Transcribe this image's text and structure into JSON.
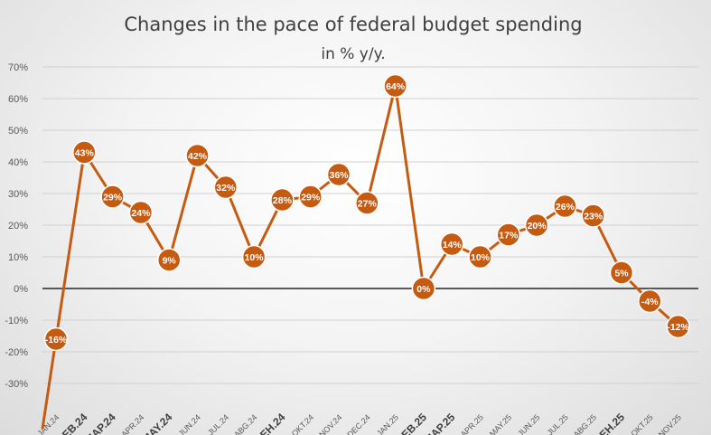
{
  "chart_data": {
    "type": "line",
    "title": "Changes in the pace of federal budget spending",
    "subtitle": "in % y/y.",
    "xlabel": "",
    "ylabel": "",
    "ylim": [
      -30,
      70
    ],
    "yticks": [
      70,
      60,
      50,
      40,
      30,
      20,
      10,
      0,
      -10,
      -20,
      -30
    ],
    "ytick_labels": [
      "70%",
      "60%",
      "50%",
      "40%",
      "30%",
      "20%",
      "10%",
      "0%",
      "-10%",
      "-20%",
      "-30%"
    ],
    "categories": [
      "JAN.24",
      "ФЕВ.24",
      "MAP.24",
      "APR.24",
      "MAY.24",
      "JUN.24",
      "JUL.24",
      "ABG.24",
      "CEH.24",
      "OKT.24",
      "NOV.24",
      "DEC.24",
      "JAN.25",
      "ФЕВ.25",
      "MAP.25",
      "APR.25",
      "MAY.25",
      "JUN.25",
      "JUL.25",
      "ABG.25",
      "CEH.25",
      "OKT.25",
      "NOV.25"
    ],
    "bold_categories": [
      "ФЕВ.24",
      "MAP.24",
      "MAY.24",
      "CEH.24",
      "ФЕВ.25",
      "MAP.25",
      "CEH.25"
    ],
    "values": [
      -16,
      43,
      29,
      24,
      9,
      42,
      32,
      10,
      28,
      29,
      36,
      27,
      64,
      0,
      14,
      10,
      17,
      20,
      26,
      23,
      5,
      -4,
      -12
    ],
    "data_labels": [
      "-16%",
      "43%",
      "29%",
      "24%",
      "9%",
      "42%",
      "32%",
      "10%",
      "28%",
      "29%",
      "36%",
      "27%",
      "64%",
      "0%",
      "14%",
      "10%",
      "17%",
      "20%",
      "26%",
      "23%",
      "5%",
      "-4%",
      "-12%"
    ],
    "series_color": "#c55a11",
    "grid": true,
    "legend": "none"
  }
}
